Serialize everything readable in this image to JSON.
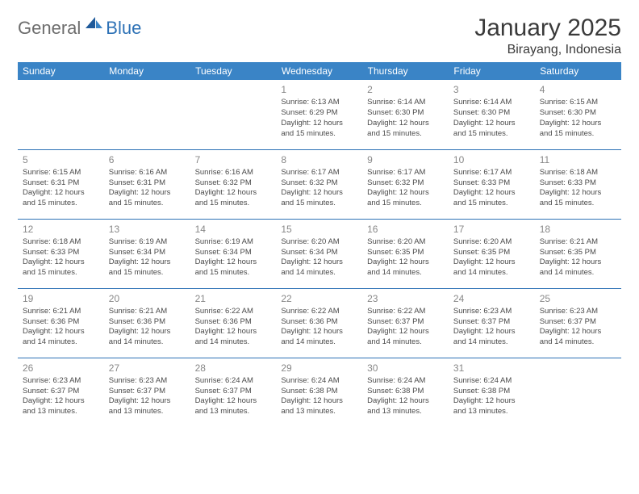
{
  "logo": {
    "text_general": "General",
    "text_blue": "Blue",
    "icon_color_dark": "#1f5a9a",
    "icon_color_light": "#3a84c6"
  },
  "header": {
    "month_title": "January 2025",
    "location": "Birayang, Indonesia"
  },
  "colors": {
    "header_bg": "#3a84c6",
    "header_text": "#ffffff",
    "row_divider": "#2e72b6",
    "day_number": "#888888",
    "body_text": "#4a4a4a"
  },
  "weekdays": [
    "Sunday",
    "Monday",
    "Tuesday",
    "Wednesday",
    "Thursday",
    "Friday",
    "Saturday"
  ],
  "cells": [
    {
      "day": "",
      "sunrise": "",
      "sunset": "",
      "daylight": ""
    },
    {
      "day": "",
      "sunrise": "",
      "sunset": "",
      "daylight": ""
    },
    {
      "day": "",
      "sunrise": "",
      "sunset": "",
      "daylight": ""
    },
    {
      "day": "1",
      "sunrise": "Sunrise: 6:13 AM",
      "sunset": "Sunset: 6:29 PM",
      "daylight": "Daylight: 12 hours and 15 minutes."
    },
    {
      "day": "2",
      "sunrise": "Sunrise: 6:14 AM",
      "sunset": "Sunset: 6:30 PM",
      "daylight": "Daylight: 12 hours and 15 minutes."
    },
    {
      "day": "3",
      "sunrise": "Sunrise: 6:14 AM",
      "sunset": "Sunset: 6:30 PM",
      "daylight": "Daylight: 12 hours and 15 minutes."
    },
    {
      "day": "4",
      "sunrise": "Sunrise: 6:15 AM",
      "sunset": "Sunset: 6:30 PM",
      "daylight": "Daylight: 12 hours and 15 minutes."
    },
    {
      "day": "5",
      "sunrise": "Sunrise: 6:15 AM",
      "sunset": "Sunset: 6:31 PM",
      "daylight": "Daylight: 12 hours and 15 minutes."
    },
    {
      "day": "6",
      "sunrise": "Sunrise: 6:16 AM",
      "sunset": "Sunset: 6:31 PM",
      "daylight": "Daylight: 12 hours and 15 minutes."
    },
    {
      "day": "7",
      "sunrise": "Sunrise: 6:16 AM",
      "sunset": "Sunset: 6:32 PM",
      "daylight": "Daylight: 12 hours and 15 minutes."
    },
    {
      "day": "8",
      "sunrise": "Sunrise: 6:17 AM",
      "sunset": "Sunset: 6:32 PM",
      "daylight": "Daylight: 12 hours and 15 minutes."
    },
    {
      "day": "9",
      "sunrise": "Sunrise: 6:17 AM",
      "sunset": "Sunset: 6:32 PM",
      "daylight": "Daylight: 12 hours and 15 minutes."
    },
    {
      "day": "10",
      "sunrise": "Sunrise: 6:17 AM",
      "sunset": "Sunset: 6:33 PM",
      "daylight": "Daylight: 12 hours and 15 minutes."
    },
    {
      "day": "11",
      "sunrise": "Sunrise: 6:18 AM",
      "sunset": "Sunset: 6:33 PM",
      "daylight": "Daylight: 12 hours and 15 minutes."
    },
    {
      "day": "12",
      "sunrise": "Sunrise: 6:18 AM",
      "sunset": "Sunset: 6:33 PM",
      "daylight": "Daylight: 12 hours and 15 minutes."
    },
    {
      "day": "13",
      "sunrise": "Sunrise: 6:19 AM",
      "sunset": "Sunset: 6:34 PM",
      "daylight": "Daylight: 12 hours and 15 minutes."
    },
    {
      "day": "14",
      "sunrise": "Sunrise: 6:19 AM",
      "sunset": "Sunset: 6:34 PM",
      "daylight": "Daylight: 12 hours and 15 minutes."
    },
    {
      "day": "15",
      "sunrise": "Sunrise: 6:20 AM",
      "sunset": "Sunset: 6:34 PM",
      "daylight": "Daylight: 12 hours and 14 minutes."
    },
    {
      "day": "16",
      "sunrise": "Sunrise: 6:20 AM",
      "sunset": "Sunset: 6:35 PM",
      "daylight": "Daylight: 12 hours and 14 minutes."
    },
    {
      "day": "17",
      "sunrise": "Sunrise: 6:20 AM",
      "sunset": "Sunset: 6:35 PM",
      "daylight": "Daylight: 12 hours and 14 minutes."
    },
    {
      "day": "18",
      "sunrise": "Sunrise: 6:21 AM",
      "sunset": "Sunset: 6:35 PM",
      "daylight": "Daylight: 12 hours and 14 minutes."
    },
    {
      "day": "19",
      "sunrise": "Sunrise: 6:21 AM",
      "sunset": "Sunset: 6:36 PM",
      "daylight": "Daylight: 12 hours and 14 minutes."
    },
    {
      "day": "20",
      "sunrise": "Sunrise: 6:21 AM",
      "sunset": "Sunset: 6:36 PM",
      "daylight": "Daylight: 12 hours and 14 minutes."
    },
    {
      "day": "21",
      "sunrise": "Sunrise: 6:22 AM",
      "sunset": "Sunset: 6:36 PM",
      "daylight": "Daylight: 12 hours and 14 minutes."
    },
    {
      "day": "22",
      "sunrise": "Sunrise: 6:22 AM",
      "sunset": "Sunset: 6:36 PM",
      "daylight": "Daylight: 12 hours and 14 minutes."
    },
    {
      "day": "23",
      "sunrise": "Sunrise: 6:22 AM",
      "sunset": "Sunset: 6:37 PM",
      "daylight": "Daylight: 12 hours and 14 minutes."
    },
    {
      "day": "24",
      "sunrise": "Sunrise: 6:23 AM",
      "sunset": "Sunset: 6:37 PM",
      "daylight": "Daylight: 12 hours and 14 minutes."
    },
    {
      "day": "25",
      "sunrise": "Sunrise: 6:23 AM",
      "sunset": "Sunset: 6:37 PM",
      "daylight": "Daylight: 12 hours and 14 minutes."
    },
    {
      "day": "26",
      "sunrise": "Sunrise: 6:23 AM",
      "sunset": "Sunset: 6:37 PM",
      "daylight": "Daylight: 12 hours and 13 minutes."
    },
    {
      "day": "27",
      "sunrise": "Sunrise: 6:23 AM",
      "sunset": "Sunset: 6:37 PM",
      "daylight": "Daylight: 12 hours and 13 minutes."
    },
    {
      "day": "28",
      "sunrise": "Sunrise: 6:24 AM",
      "sunset": "Sunset: 6:37 PM",
      "daylight": "Daylight: 12 hours and 13 minutes."
    },
    {
      "day": "29",
      "sunrise": "Sunrise: 6:24 AM",
      "sunset": "Sunset: 6:38 PM",
      "daylight": "Daylight: 12 hours and 13 minutes."
    },
    {
      "day": "30",
      "sunrise": "Sunrise: 6:24 AM",
      "sunset": "Sunset: 6:38 PM",
      "daylight": "Daylight: 12 hours and 13 minutes."
    },
    {
      "day": "31",
      "sunrise": "Sunrise: 6:24 AM",
      "sunset": "Sunset: 6:38 PM",
      "daylight": "Daylight: 12 hours and 13 minutes."
    },
    {
      "day": "",
      "sunrise": "",
      "sunset": "",
      "daylight": ""
    }
  ]
}
